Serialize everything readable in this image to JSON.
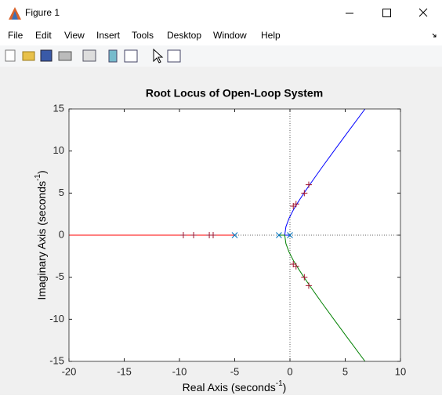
{
  "window": {
    "title": "Figure 1"
  },
  "menu": [
    "File",
    "Edit",
    "View",
    "Insert",
    "Tools",
    "Desktop",
    "Window",
    "Help"
  ],
  "chart_data": {
    "type": "root-locus",
    "title": "Root Locus of Open-Loop System",
    "xlabel": [
      "Real Axis (seconds",
      "-1",
      ")"
    ],
    "ylabel": [
      "Imaginary Axis (seconds",
      "-1",
      ")"
    ],
    "xlim": [
      -20,
      10
    ],
    "ylim": [
      -15,
      15
    ],
    "xticks": [
      -20,
      -15,
      -10,
      -5,
      0,
      5,
      10
    ],
    "yticks": [
      -15,
      -10,
      -5,
      0,
      5,
      10,
      15
    ],
    "zero_axes": true,
    "series": [
      {
        "color": "#0000ff",
        "x": [
          0,
          -0.4725,
          -0.367,
          -0.085,
          0.309,
          0.769,
          1.266,
          1.786,
          2.865,
          3.972,
          5.095,
          6.794
        ],
        "y": [
          0,
          0,
          1,
          2,
          3,
          4,
          5,
          6,
          8,
          10,
          12,
          15
        ]
      },
      {
        "color": "#008000",
        "x": [
          -1,
          -0.4725,
          -0.367,
          -0.085,
          0.309,
          0.769,
          1.266,
          1.786,
          2.865,
          3.972,
          5.095,
          6.794
        ],
        "y": [
          0,
          0,
          -1,
          -2,
          -3,
          -4,
          -5,
          -6,
          -8,
          -10,
          -12,
          -15
        ]
      },
      {
        "color": "#ff0000",
        "x": [
          -5,
          -20
        ],
        "y": [
          0,
          0
        ]
      }
    ],
    "poles": {
      "color": "#0072bd",
      "x": [
        -5,
        -1,
        0
      ],
      "y": [
        0,
        0,
        0
      ]
    },
    "closed_loop_poles": {
      "color": "#a2142f",
      "x": [
        -9.65,
        -8.72,
        -7.3,
        -6.95,
        0.3,
        0.55,
        1.3,
        1.7,
        0.3,
        0.55,
        1.3,
        1.7
      ],
      "y": [
        0,
        0,
        0,
        0,
        3.45,
        3.7,
        5.0,
        6.0,
        -3.45,
        -3.7,
        -5.0,
        -6.0
      ]
    }
  }
}
